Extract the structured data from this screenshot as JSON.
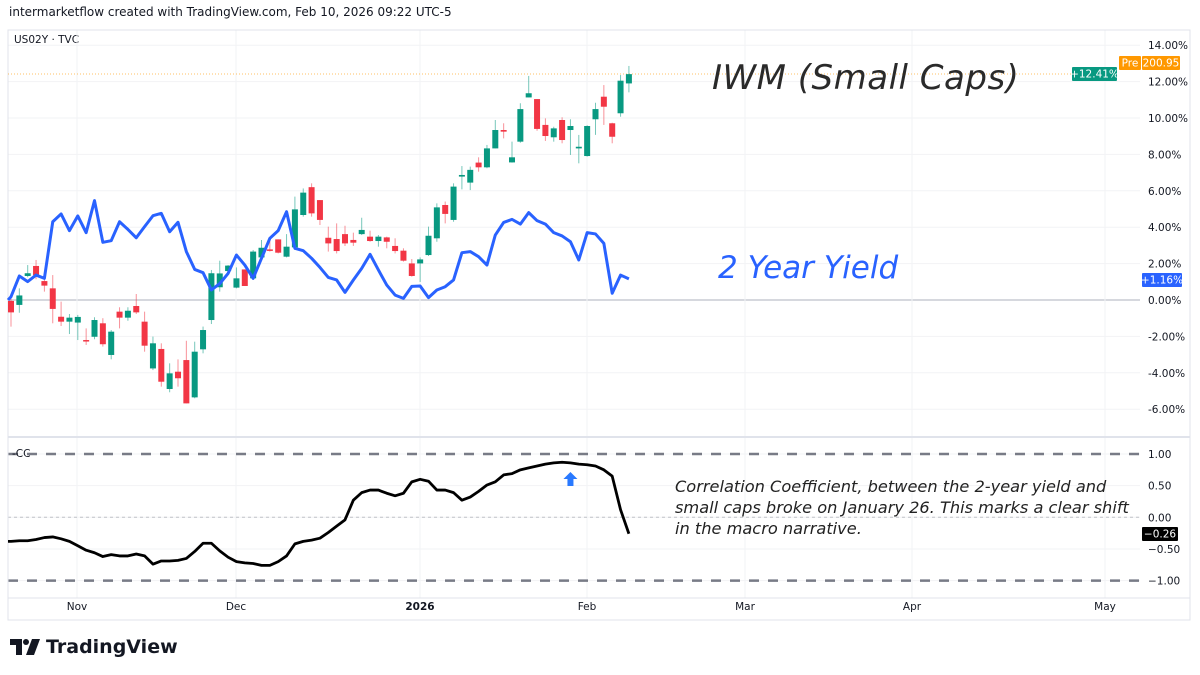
{
  "header": {
    "attribution": "intermarketflow created with TradingView.com, Feb 10, 2026 09:22 UTC-5",
    "symbol": "US02Y · TVC"
  },
  "annotations": {
    "iwm": "IWM (Small Caps)",
    "yield": "2 Year Yield",
    "cc": "Correlation Coefficient, between the 2-year yield and small caps broke on January 26. This marks a clear shift in the macro narrative."
  },
  "price_scale": {
    "pre_badge": "Pre",
    "pre_value": "200.95",
    "iwm_last": "+12.41%",
    "yield_last": "+1.16%"
  },
  "cc_pane": {
    "label": "CC",
    "last": "−0.26"
  },
  "logo": {
    "text": "TradingView"
  },
  "colors": {
    "up": "#089981",
    "down": "#f23645",
    "yield_line": "#2962ff",
    "cc_line": "#000000",
    "pre": "#ff9800",
    "arrow": "#2979ff"
  },
  "chart_data": [
    {
      "type": "candlestick+line",
      "title": "",
      "ylabel": "",
      "yunit": "%",
      "ylim": [
        -7,
        14.5
      ],
      "yticks": [
        "14.00%",
        "12.00%",
        "10.00%",
        "8.00%",
        "6.00%",
        "4.00%",
        "2.00%",
        "0.00%",
        "-2.00%",
        "-4.00%",
        "-6.00%"
      ],
      "xticks": [
        "Nov",
        "Dec",
        "2026",
        "Feb",
        "Mar",
        "Apr",
        "May"
      ],
      "grid": true,
      "dates": [
        "2025-10-22",
        "2025-10-23",
        "2025-10-24",
        "2025-10-27",
        "2025-10-28",
        "2025-10-29",
        "2025-10-30",
        "2025-10-31",
        "2025-11-03",
        "2025-11-04",
        "2025-11-05",
        "2025-11-06",
        "2025-11-07",
        "2025-11-10",
        "2025-11-11",
        "2025-11-12",
        "2025-11-13",
        "2025-11-14",
        "2025-11-17",
        "2025-11-18",
        "2025-11-19",
        "2025-11-20",
        "2025-11-21",
        "2025-11-24",
        "2025-11-25",
        "2025-11-26",
        "2025-11-28",
        "2025-12-01",
        "2025-12-02",
        "2025-12-03",
        "2025-12-04",
        "2025-12-05",
        "2025-12-08",
        "2025-12-09",
        "2025-12-10",
        "2025-12-11",
        "2025-12-12",
        "2025-12-15",
        "2025-12-16",
        "2025-12-17",
        "2025-12-18",
        "2025-12-19",
        "2025-12-22",
        "2025-12-23",
        "2025-12-24",
        "2025-12-26",
        "2025-12-29",
        "2025-12-30",
        "2025-12-31",
        "2026-01-02",
        "2026-01-05",
        "2026-01-06",
        "2026-01-07",
        "2026-01-08",
        "2026-01-09",
        "2026-01-12",
        "2026-01-13",
        "2026-01-14",
        "2026-01-15",
        "2026-01-16",
        "2026-01-20",
        "2026-01-21",
        "2026-01-22",
        "2026-01-23",
        "2026-01-26",
        "2026-01-27",
        "2026-01-28",
        "2026-01-29",
        "2026-01-30",
        "2026-02-02",
        "2026-02-03",
        "2026-02-04",
        "2026-02-05",
        "2026-02-06",
        "2026-02-09"
      ],
      "series": [
        {
          "name": "IWM (Small Caps)",
          "type": "candlestick",
          "open": [
            -0.05,
            -0.27,
            1.32,
            1.87,
            1.04,
            0.64,
            -0.92,
            -1.19,
            -1.24,
            -2.2,
            -2.02,
            -1.28,
            -3.02,
            -0.64,
            -0.97,
            -0.33,
            -1.19,
            -3.76,
            -2.69,
            -4.89,
            -3.94,
            -3.3,
            -5.35,
            -2.71,
            -1.1,
            0.7,
            1.59,
            0.68,
            1.68,
            1.19,
            2.34,
            2.78,
            3.33,
            2.38,
            2.89,
            4.67,
            6.2,
            5.49,
            3.42,
            3.35,
            3.62,
            3.3,
            3.62,
            3.48,
            3.24,
            3.44,
            2.97,
            2.71,
            2.01,
            2.01,
            2.47,
            3.39,
            5.22,
            4.4,
            6.78,
            6.45,
            7.55,
            7.29,
            8.33,
            9.34,
            7.56,
            8.7,
            11.13,
            11.04,
            9.62,
            8.94,
            9.89,
            9.34,
            8.33,
            7.91,
            9.93,
            11.17,
            9.71,
            10.26,
            11.9
          ],
          "high": [
            0.18,
            0.64,
            1.92,
            2.2,
            1.28,
            1.37,
            -0.09,
            -0.77,
            -0.82,
            -1.56,
            -0.95,
            -1.0,
            -1.65,
            -0.4,
            -0.4,
            0.33,
            -0.64,
            -2.01,
            -2.38,
            -3.48,
            -3.26,
            -2.24,
            -2.29,
            -1.46,
            1.65,
            2.16,
            1.92,
            1.79,
            1.68,
            2.75,
            3.3,
            3.36,
            3.33,
            3.62,
            5.68,
            6.13,
            6.41,
            5.49,
            4.03,
            4.21,
            4.08,
            3.7,
            4.52,
            3.81,
            3.57,
            3.48,
            3.39,
            2.84,
            2.25,
            2.34,
            4.03,
            5.31,
            5.41,
            6.41,
            7.36,
            7.33,
            7.84,
            8.52,
            9.89,
            9.71,
            8.7,
            10.81,
            12.31,
            11.04,
            9.98,
            9.52,
            10.04,
            9.93,
            9.07,
            9.6,
            10.84,
            11.81,
            9.74,
            12.36,
            12.86
          ],
          "low": [
            -1.46,
            -0.7,
            1.25,
            1.14,
            0.46,
            -1.28,
            -1.43,
            -1.87,
            -2.2,
            -2.47,
            -2.16,
            -2.56,
            -3.26,
            -1.56,
            -1.14,
            -0.77,
            -2.84,
            -3.85,
            -4.76,
            -5.07,
            -4.76,
            -5.68,
            -5.4,
            -2.93,
            -1.32,
            0.46,
            1.55,
            0.64,
            0.77,
            1.1,
            2.29,
            2.66,
            2.56,
            2.34,
            2.75,
            4.58,
            4.58,
            4.12,
            2.66,
            2.56,
            2.97,
            2.97,
            3.57,
            3.2,
            2.93,
            2.84,
            2.56,
            2.11,
            1.28,
            0.99,
            2.42,
            3.2,
            4.21,
            4.3,
            6.08,
            6.04,
            7.05,
            7.24,
            8.33,
            8.88,
            7.55,
            8.64,
            11.13,
            9.3,
            8.74,
            8.7,
            8.61,
            7.97,
            7.51,
            7.88,
            9.07,
            9.62,
            8.61,
            10.07,
            11.41
          ],
          "close": [
            -0.68,
            0.25,
            1.47,
            1.36,
            0.79,
            -0.49,
            -1.19,
            -0.97,
            -0.93,
            -2.25,
            -1.1,
            -2.43,
            -1.74,
            -0.97,
            -0.59,
            -0.68,
            -2.51,
            -2.38,
            -4.49,
            -4.03,
            -4.3,
            -5.68,
            -2.84,
            -1.65,
            1.47,
            1.46,
            1.89,
            1.19,
            0.77,
            2.66,
            2.87,
            2.75,
            2.6,
            2.93,
            4.98,
            5.9,
            4.76,
            4.4,
            3.11,
            2.69,
            3.11,
            3.15,
            3.85,
            3.24,
            3.48,
            3.2,
            2.69,
            2.16,
            1.32,
            2.23,
            3.53,
            5.09,
            4.73,
            6.23,
            6.87,
            7.15,
            7.29,
            8.33,
            9.34,
            9.25,
            7.84,
            10.49,
            11.36,
            9.4,
            9.01,
            9.43,
            8.79,
            9.56,
            8.42,
            9.56,
            10.49,
            10.62,
            8.97,
            12.05,
            12.41
          ]
        },
        {
          "name": "2 Year Yield",
          "type": "line",
          "values": [
            0.18,
            1.32,
            1.01,
            1.37,
            1.19,
            4.3,
            4.73,
            3.81,
            4.62,
            3.7,
            5.46,
            3.17,
            3.26,
            4.3,
            3.88,
            3.42,
            4.03,
            4.63,
            4.76,
            3.75,
            4.27,
            2.66,
            1.68,
            1.5,
            0.55,
            0.9,
            1.46,
            2.47,
            1.92,
            1.19,
            2.29,
            3.39,
            3.81,
            4.85,
            2.84,
            2.71,
            2.29,
            1.79,
            1.24,
            1.1,
            0.42,
            1.1,
            1.74,
            2.51,
            1.65,
            0.82,
            0.27,
            0.09,
            0.75,
            0.77,
            0.13,
            0.55,
            0.73,
            1.1,
            2.6,
            2.66,
            2.38,
            1.92,
            3.57,
            4.26,
            4.43,
            4.17,
            4.8,
            4.36,
            4.17,
            3.7,
            3.52,
            3.2,
            2.2,
            3.7,
            3.63,
            3.11,
            0.37,
            1.37,
            1.16
          ]
        }
      ]
    },
    {
      "type": "line",
      "title": "CC",
      "ylim": [
        -1.2,
        1.2
      ],
      "yticks": [
        "1.00",
        "0.50",
        "0.00",
        "-0.50",
        "-1.00"
      ],
      "reference_lines": [
        1,
        0,
        -1
      ],
      "series": [
        {
          "values": [
            -0.38,
            -0.37,
            -0.37,
            -0.35,
            -0.32,
            -0.31,
            -0.34,
            -0.38,
            -0.45,
            -0.52,
            -0.56,
            -0.62,
            -0.59,
            -0.61,
            -0.61,
            -0.58,
            -0.61,
            -0.74,
            -0.69,
            -0.69,
            -0.68,
            -0.65,
            -0.54,
            -0.41,
            -0.41,
            -0.53,
            -0.63,
            -0.7,
            -0.72,
            -0.73,
            -0.76,
            -0.76,
            -0.7,
            -0.61,
            -0.42,
            -0.38,
            -0.36,
            -0.33,
            -0.24,
            -0.14,
            -0.04,
            0.27,
            0.39,
            0.43,
            0.43,
            0.38,
            0.34,
            0.38,
            0.56,
            0.6,
            0.57,
            0.43,
            0.43,
            0.39,
            0.27,
            0.32,
            0.41,
            0.51,
            0.56,
            0.67,
            0.69,
            0.75,
            0.78,
            0.81,
            0.84,
            0.86,
            0.87,
            0.86,
            0.84,
            0.83,
            0.81,
            0.75,
            0.65,
            0.12,
            -0.26
          ]
        }
      ],
      "marker": {
        "type": "arrow-up",
        "date": "2026-01-29"
      }
    }
  ]
}
